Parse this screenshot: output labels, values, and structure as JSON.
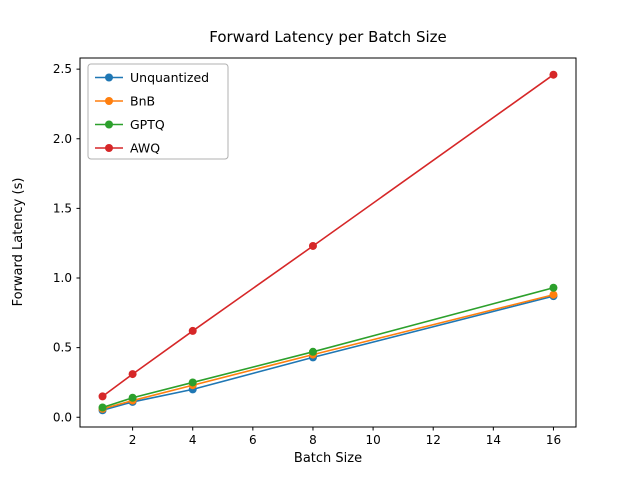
{
  "chart_data": {
    "type": "line",
    "title": "Forward Latency per Batch Size",
    "xlabel": "Batch Size",
    "ylabel": "Forward Latency (s)",
    "x": [
      1,
      2,
      4,
      8,
      16
    ],
    "series": [
      {
        "name": "Unquantized",
        "color": "#1f77b4",
        "values": [
          0.05,
          0.11,
          0.2,
          0.43,
          0.87
        ]
      },
      {
        "name": "BnB",
        "color": "#ff7f0e",
        "values": [
          0.06,
          0.12,
          0.23,
          0.45,
          0.88
        ]
      },
      {
        "name": "GPTQ",
        "color": "#2ca02c",
        "values": [
          0.07,
          0.14,
          0.25,
          0.47,
          0.93
        ]
      },
      {
        "name": "AWQ",
        "color": "#d62728",
        "values": [
          0.15,
          0.31,
          0.62,
          1.23,
          2.46
        ]
      }
    ],
    "xlim": [
      0.25,
      16.75
    ],
    "ylim": [
      -0.07,
      2.58
    ],
    "xticks": [
      2,
      4,
      6,
      8,
      10,
      12,
      14,
      16
    ],
    "xtick_labels": [
      "2",
      "4",
      "6",
      "8",
      "10",
      "12",
      "14",
      "16"
    ],
    "yticks": [
      0.0,
      0.5,
      1.0,
      1.5,
      2.0,
      2.5
    ],
    "ytick_labels": [
      "0.0",
      "0.5",
      "1.0",
      "1.5",
      "2.0",
      "2.5"
    ],
    "legend_position": "upper left",
    "grid": false,
    "marker": "o",
    "background_color": "#ffffff",
    "axis_color": "#000000",
    "legend_border_color": "#b0b0b0"
  }
}
